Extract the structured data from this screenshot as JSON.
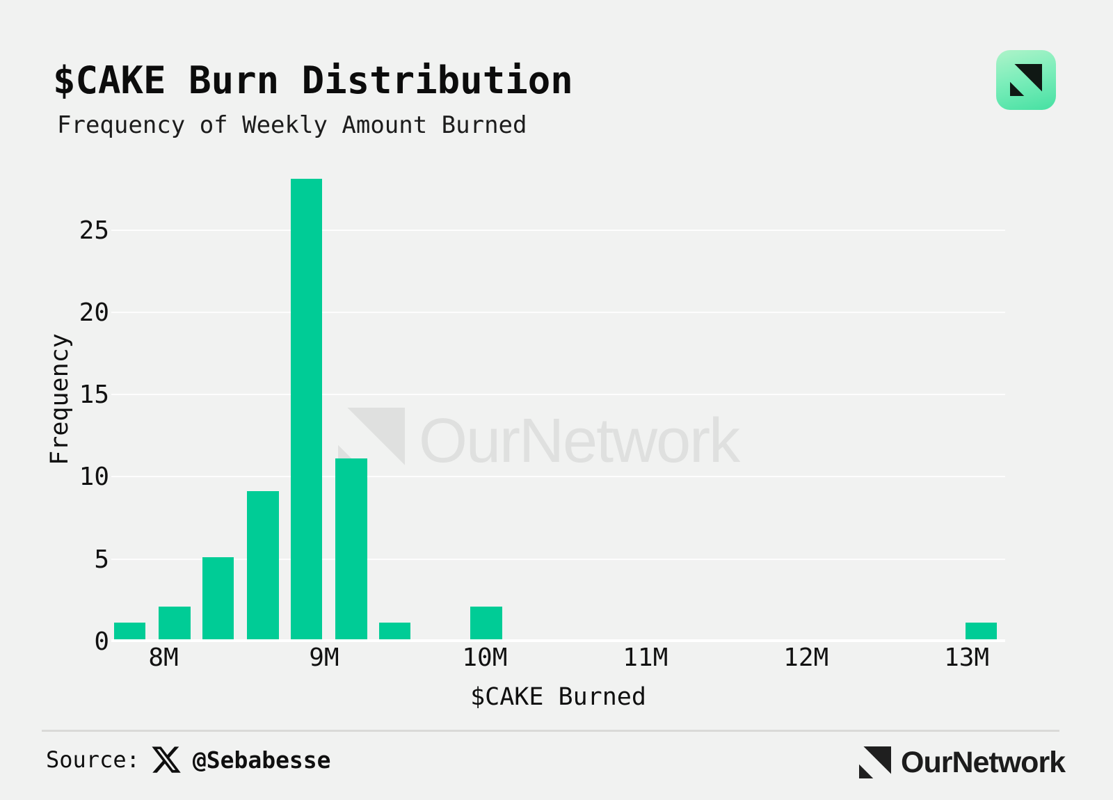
{
  "page": {
    "background_color": "#f1f2f1",
    "accent_green": "#00cc96"
  },
  "header": {
    "title": "$CAKE Burn Distribution",
    "subtitle": "Frequency of Weekly Amount Burned",
    "app_icon": "ournetwork-app-icon",
    "app_icon_gradient": [
      "#aef3c9",
      "#46e0a2"
    ]
  },
  "chart_data": {
    "type": "bar",
    "subtype": "histogram",
    "title": "$CAKE Burn Distribution",
    "subtitle": "Frequency of Weekly Amount Burned",
    "xlabel": "$CAKE Burned",
    "ylabel": "Frequency",
    "x_unit": "millions of CAKE",
    "xlim_m": [
      7.675,
      13.24
    ],
    "ylim": [
      0,
      28.87
    ],
    "grid": "horizontal white gridlines on gray background",
    "legend": "none",
    "bar_color": "#00cc96",
    "bin_width": 0.275,
    "x_ticks": [
      {
        "value": 8,
        "label": "8M"
      },
      {
        "value": 9,
        "label": "9M"
      },
      {
        "value": 10,
        "label": "10M"
      },
      {
        "value": 11,
        "label": "11M"
      },
      {
        "value": 12,
        "label": "12M"
      },
      {
        "value": 13,
        "label": "13M"
      }
    ],
    "y_ticks": [
      0,
      5,
      10,
      15,
      20,
      25
    ],
    "bars": [
      {
        "center": 7.79,
        "frequency": 1
      },
      {
        "center": 8.07,
        "frequency": 2
      },
      {
        "center": 8.34,
        "frequency": 5
      },
      {
        "center": 8.62,
        "frequency": 9
      },
      {
        "center": 8.89,
        "frequency": 28
      },
      {
        "center": 9.17,
        "frequency": 11
      },
      {
        "center": 9.44,
        "frequency": 1
      },
      {
        "center": 10.01,
        "frequency": 2
      },
      {
        "center": 13.09,
        "frequency": 1
      }
    ]
  },
  "watermark": {
    "logo": "ournetwork-mark",
    "text": "OurNetwork",
    "color": "#ececec"
  },
  "footer": {
    "source_label": "Source:",
    "source_icon": "x-twitter-logo",
    "source_handle": "@Sebabesse",
    "brand_logo": "ournetwork-mark",
    "brand_text": "OurNetwork"
  }
}
